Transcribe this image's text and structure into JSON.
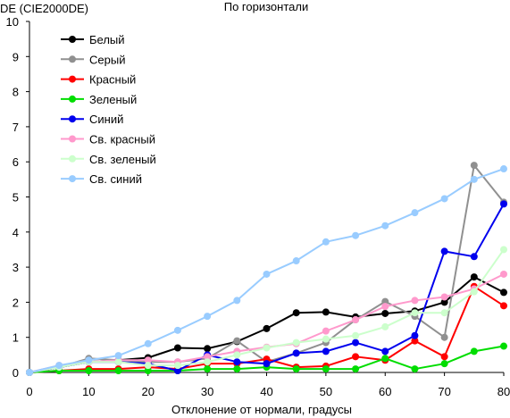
{
  "chart_data": {
    "type": "line",
    "title": "По горизонтали",
    "ylabel": "DE (CIE2000DE)",
    "xlabel": "Отклонение от нормали, градусы",
    "xlim": [
      0,
      80
    ],
    "ylim": [
      0,
      10
    ],
    "x_ticks": [
      "0",
      "10",
      "20",
      "30",
      "40",
      "50",
      "60",
      "70",
      "80"
    ],
    "y_ticks": [
      "0",
      "1",
      "2",
      "3",
      "4",
      "5",
      "6",
      "7",
      "8",
      "9",
      "10"
    ],
    "grid": false,
    "legend_position": "top-left",
    "x": [
      0,
      5,
      10,
      15,
      20,
      25,
      30,
      35,
      40,
      45,
      50,
      55,
      60,
      65,
      70,
      75,
      80
    ],
    "series": [
      {
        "name": "Белый",
        "color": "#000000",
        "values": [
          0,
          0.15,
          0.3,
          0.35,
          0.42,
          0.7,
          0.68,
          0.88,
          1.25,
          1.7,
          1.72,
          1.58,
          1.68,
          1.75,
          2.0,
          2.72,
          2.28
        ]
      },
      {
        "name": "Серый",
        "color": "#909090",
        "values": [
          0,
          0.15,
          0.4,
          0.35,
          0.3,
          0.3,
          0.4,
          0.9,
          0.3,
          0.55,
          0.85,
          1.5,
          2.02,
          1.6,
          1.0,
          5.9,
          4.85
        ]
      },
      {
        "name": "Красный",
        "color": "#ff0000",
        "values": [
          0,
          0.05,
          0.1,
          0.1,
          0.15,
          0.1,
          0.25,
          0.25,
          0.38,
          0.15,
          0.18,
          0.45,
          0.35,
          0.9,
          0.45,
          2.45,
          1.9
        ]
      },
      {
        "name": "Зеленый",
        "color": "#00dd00",
        "values": [
          0,
          0.05,
          0.05,
          0.05,
          0.05,
          0.05,
          0.1,
          0.1,
          0.15,
          0.1,
          0.1,
          0.1,
          0.4,
          0.1,
          0.25,
          0.6,
          0.75
        ]
      },
      {
        "name": "Синий",
        "color": "#0000ee",
        "values": [
          0,
          0.15,
          0.3,
          0.3,
          0.25,
          0.05,
          0.5,
          0.3,
          0.25,
          0.55,
          0.6,
          0.85,
          0.6,
          1.05,
          3.45,
          3.3,
          4.8
        ]
      },
      {
        "name": "Св. красный",
        "color": "#ff99cc",
        "values": [
          0,
          0.2,
          0.3,
          0.35,
          0.35,
          0.3,
          0.45,
          0.6,
          0.72,
          0.82,
          1.18,
          1.5,
          1.88,
          2.05,
          2.15,
          2.38,
          2.8
        ]
      },
      {
        "name": "Св. зеленый",
        "color": "#ccffcc",
        "values": [
          0,
          0.15,
          0.3,
          0.3,
          0.2,
          0.2,
          0.3,
          0.5,
          0.7,
          0.85,
          0.95,
          1.05,
          1.3,
          1.7,
          1.7,
          2.3,
          3.5
        ]
      },
      {
        "name": "Св. синий",
        "color": "#99ccff",
        "values": [
          0,
          0.2,
          0.35,
          0.48,
          0.82,
          1.2,
          1.6,
          2.05,
          2.8,
          3.18,
          3.72,
          3.9,
          4.18,
          4.55,
          4.95,
          5.5,
          5.8
        ]
      }
    ]
  }
}
